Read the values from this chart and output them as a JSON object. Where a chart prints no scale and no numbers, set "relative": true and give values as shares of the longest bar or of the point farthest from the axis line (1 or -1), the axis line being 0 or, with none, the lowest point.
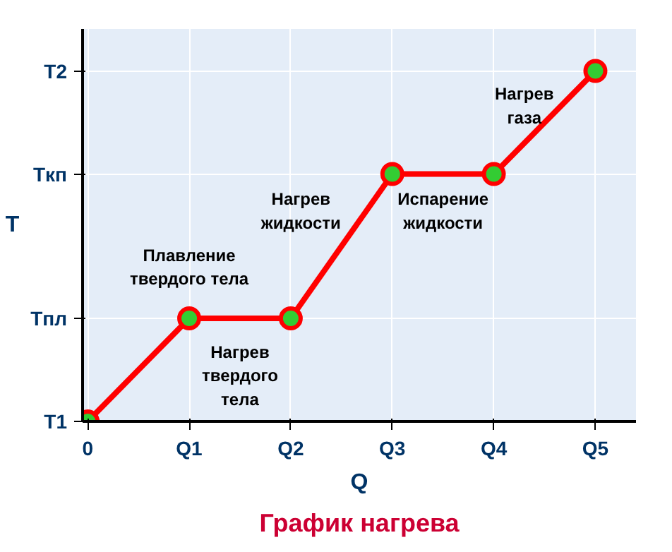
{
  "chart_data": {
    "type": "line",
    "title": "График нагрева",
    "xlabel": "Q",
    "ylabel": "T",
    "relative": true,
    "categories": [
      "0",
      "Q1",
      "Q2",
      "Q3",
      "Q4",
      "Q5"
    ],
    "series": [
      {
        "color": "#ff0000",
        "values": [
          0,
          0.294,
          0.294,
          0.706,
          0.706,
          1
        ]
      }
    ],
    "grid": true,
    "marker": "circle",
    "line_style": "solid",
    "annotations": [
      "T1",
      "Tпл",
      "Tкп",
      "T2",
      "Нагрев\nтвердого\nтела",
      "Плавление\nтвердого тела",
      "Нагрев\nжидкости",
      "Испарение\nжидкости",
      "Нагрев\nгаза"
    ]
  }
}
